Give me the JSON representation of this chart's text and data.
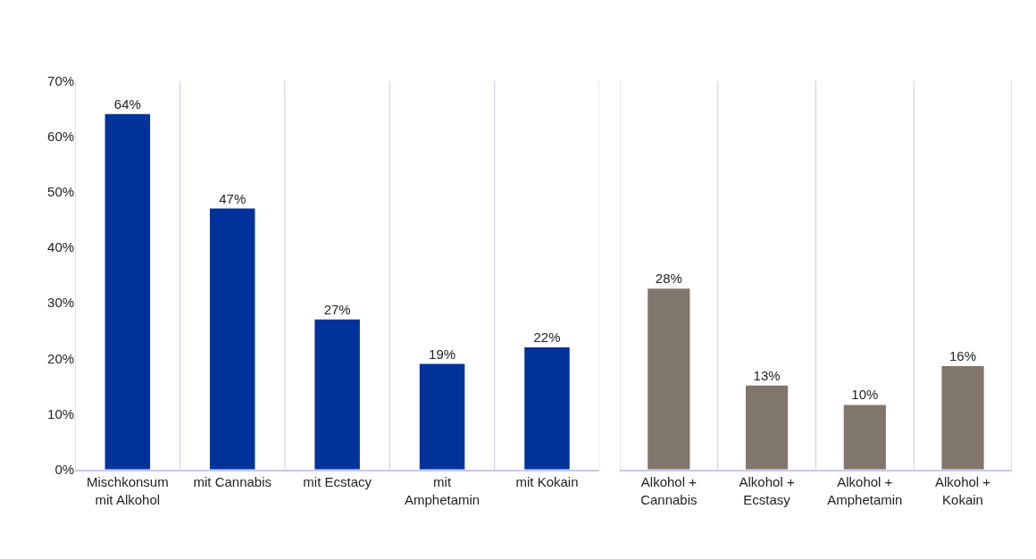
{
  "chart_data": [
    {
      "type": "bar",
      "categories": [
        "Mischkonsum\nmit Alkohol",
        "mit Cannabis",
        "mit Ecstacy",
        "mit\nAmphetamin",
        "mit Kokain"
      ],
      "values": [
        64,
        47,
        27,
        19,
        22
      ],
      "color": "#003399",
      "ylim": [
        0,
        70
      ],
      "yticks": [
        {
          "value": 0,
          "label": "0%"
        },
        {
          "value": 10,
          "label": "10%"
        },
        {
          "value": 20,
          "label": "20%"
        },
        {
          "value": 30,
          "label": "30%"
        },
        {
          "value": 40,
          "label": "40%"
        },
        {
          "value": 50,
          "label": "50%"
        },
        {
          "value": 60,
          "label": "60%"
        },
        {
          "value": 70,
          "label": "70%"
        }
      ],
      "value_labels": [
        "64%",
        "47%",
        "27%",
        "19%",
        "22%"
      ],
      "grid": "x"
    },
    {
      "type": "bar",
      "categories": [
        "Alkohol +\nCannabis",
        "Alkohol +\nEcstasy",
        "Alkohol +\nAmphetamin",
        "Alkohol +\nKokain"
      ],
      "values": [
        28,
        13,
        10,
        16
      ],
      "color": "#80766b",
      "value_labels": [
        "28%",
        "13%",
        "10%",
        "16%"
      ],
      "tick_labels": "x",
      "grid": "x"
    }
  ]
}
